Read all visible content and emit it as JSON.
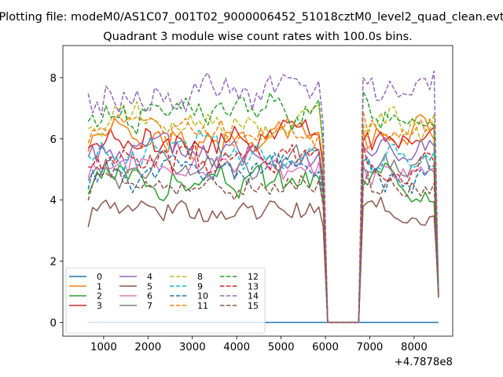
{
  "chart_data": {
    "type": "line",
    "suptitle": "Plotting file: modeM0/AS1C07_001T02_9000006452_51018cztM0_level2_quad_clean.evt",
    "title": "Quadrant 3 module wise count rates with 100.0s bins.",
    "x_offset_label": "+4.7878e8",
    "xlim": [
      80,
      8870
    ],
    "ylim": [
      -0.45,
      9.05
    ],
    "xticks": [
      1000,
      2000,
      3000,
      4000,
      5000,
      6000,
      7000,
      8000
    ],
    "yticks": [
      0,
      2,
      4,
      6,
      8
    ],
    "legend_loc": "lower left",
    "x_start": 650,
    "bin": 100,
    "gap_start": 5950,
    "gap_end": 6750,
    "x_end": 8550,
    "series": [
      {
        "name": "0",
        "color": "#1f77b4",
        "style": "solid",
        "mean": 0.0,
        "amp": 0.0,
        "seed": 1
      },
      {
        "name": "1",
        "color": "#ff7f0e",
        "style": "solid",
        "mean": 6.1,
        "amp": 0.35,
        "seed": 2
      },
      {
        "name": "2",
        "color": "#2ca02c",
        "style": "solid",
        "mean": 4.6,
        "amp": 0.35,
        "seed": 3
      },
      {
        "name": "3",
        "color": "#d62728",
        "style": "solid",
        "mean": 6.0,
        "amp": 0.35,
        "seed": 4
      },
      {
        "name": "4",
        "color": "#9467bd",
        "style": "solid",
        "mean": 5.6,
        "amp": 0.35,
        "seed": 5
      },
      {
        "name": "5",
        "color": "#8c564b",
        "style": "solid",
        "mean": 3.7,
        "amp": 0.25,
        "seed": 6
      },
      {
        "name": "6",
        "color": "#e377c2",
        "style": "solid",
        "mean": 5.2,
        "amp": 0.35,
        "seed": 7
      },
      {
        "name": "7",
        "color": "#7f7f7f",
        "style": "solid",
        "mean": 5.0,
        "amp": 0.35,
        "seed": 8
      },
      {
        "name": "8",
        "color": "#bcbd22",
        "style": "dashed",
        "mean": 6.6,
        "amp": 0.35,
        "seed": 9
      },
      {
        "name": "9",
        "color": "#17becf",
        "style": "dashed",
        "mean": 5.6,
        "amp": 0.35,
        "seed": 10
      },
      {
        "name": "10",
        "color": "#1f77b4",
        "style": "dashed",
        "mean": 4.9,
        "amp": 0.35,
        "seed": 11
      },
      {
        "name": "11",
        "color": "#ff7f0e",
        "style": "dashed",
        "mean": 6.3,
        "amp": 0.35,
        "seed": 12
      },
      {
        "name": "12",
        "color": "#2ca02c",
        "style": "dashed",
        "mean": 6.9,
        "amp": 0.35,
        "seed": 13
      },
      {
        "name": "13",
        "color": "#d62728",
        "style": "dashed",
        "mean": 5.3,
        "amp": 0.35,
        "seed": 14
      },
      {
        "name": "14",
        "color": "#9467bd",
        "style": "dashed",
        "mean": 7.6,
        "amp": 0.4,
        "seed": 15
      },
      {
        "name": "15",
        "color": "#8c564b",
        "style": "dashed",
        "mean": 4.5,
        "amp": 0.3,
        "seed": 16
      }
    ]
  }
}
